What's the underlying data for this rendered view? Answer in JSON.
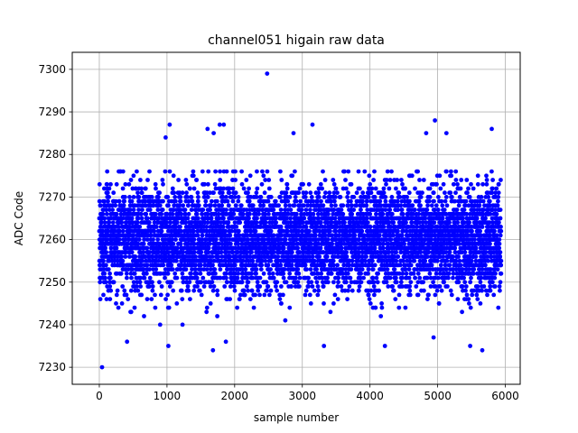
{
  "chart_data": {
    "type": "scatter",
    "title": "channel051 higain raw data",
    "xlabel": "sample number",
    "ylabel": "ADC Code",
    "xlim": [
      -400,
      6220
    ],
    "ylim": [
      7226,
      7304
    ],
    "xticks": [
      0,
      1000,
      2000,
      3000,
      4000,
      5000,
      6000
    ],
    "yticks": [
      7230,
      7240,
      7250,
      7260,
      7270,
      7280,
      7290,
      7300
    ],
    "grid": true,
    "marker_color": "#0000ff",
    "n_samples": 5940,
    "distribution": {
      "center": 7260,
      "typical_min": 7242,
      "typical_max": 7274
    },
    "notable_points": [
      {
        "x": 40,
        "y": 7230
      },
      {
        "x": 2480,
        "y": 7299
      },
      {
        "x": 4960,
        "y": 7288
      },
      {
        "x": 1040,
        "y": 7287
      },
      {
        "x": 1780,
        "y": 7287
      },
      {
        "x": 1840,
        "y": 7287
      },
      {
        "x": 3150,
        "y": 7287
      },
      {
        "x": 5800,
        "y": 7286
      },
      {
        "x": 1600,
        "y": 7286
      },
      {
        "x": 4830,
        "y": 7285
      },
      {
        "x": 5130,
        "y": 7285
      },
      {
        "x": 2870,
        "y": 7285
      },
      {
        "x": 1690,
        "y": 7285
      },
      {
        "x": 980,
        "y": 7284
      },
      {
        "x": 1680,
        "y": 7234
      },
      {
        "x": 3320,
        "y": 7235
      },
      {
        "x": 4220,
        "y": 7235
      },
      {
        "x": 1020,
        "y": 7235
      },
      {
        "x": 5480,
        "y": 7235
      },
      {
        "x": 5660,
        "y": 7234
      },
      {
        "x": 1870,
        "y": 7236
      },
      {
        "x": 410,
        "y": 7236
      },
      {
        "x": 4940,
        "y": 7237
      }
    ]
  }
}
